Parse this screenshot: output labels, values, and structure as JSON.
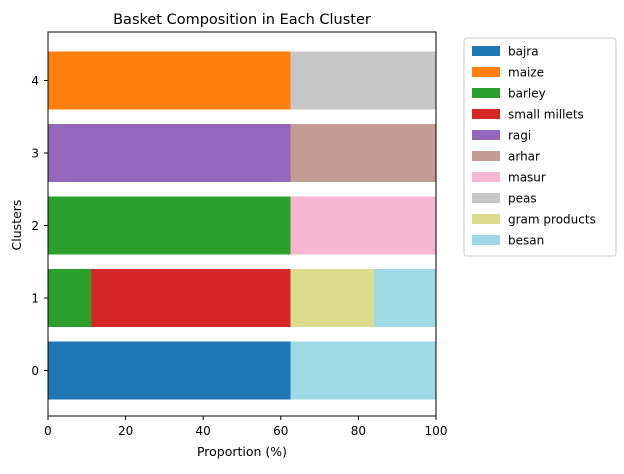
{
  "chart_data": {
    "type": "bar",
    "orientation": "horizontal",
    "stacked": true,
    "title": "Basket Composition in Each Cluster",
    "xlabel": "Proportion (%)",
    "ylabel": "Clusters",
    "xlim": [
      0,
      100
    ],
    "xticks": [
      0,
      20,
      40,
      60,
      80,
      100
    ],
    "categories": [
      "0",
      "1",
      "2",
      "3",
      "4"
    ],
    "grid": false,
    "legend_position": "outside-right",
    "series": [
      {
        "name": "bajra",
        "color": "#1f77b4",
        "values": [
          62.5,
          0,
          0,
          0,
          0
        ]
      },
      {
        "name": "maize",
        "color": "#ff7f0e",
        "values": [
          0,
          0,
          0,
          0,
          62.5
        ]
      },
      {
        "name": "barley",
        "color": "#2ca02c",
        "values": [
          0,
          11.1,
          62.5,
          0,
          0
        ]
      },
      {
        "name": "small millets",
        "color": "#d62728",
        "values": [
          0,
          51.4,
          0,
          0,
          0
        ]
      },
      {
        "name": "ragi",
        "color": "#9467bd",
        "values": [
          0,
          0,
          0,
          62.5,
          0
        ]
      },
      {
        "name": "arhar",
        "color": "#c49c94",
        "values": [
          0,
          0,
          0,
          37.5,
          0
        ]
      },
      {
        "name": "masur",
        "color": "#f7b6d2",
        "values": [
          0,
          0,
          37.5,
          0,
          0
        ]
      },
      {
        "name": "peas",
        "color": "#c7c7c7",
        "values": [
          0,
          0,
          0,
          0,
          37.5
        ]
      },
      {
        "name": "gram products",
        "color": "#dbdb8d",
        "values": [
          0,
          21.5,
          0,
          0,
          0
        ]
      },
      {
        "name": "besan",
        "color": "#9edae5",
        "values": [
          37.5,
          16.0,
          0,
          0,
          0
        ]
      }
    ]
  }
}
